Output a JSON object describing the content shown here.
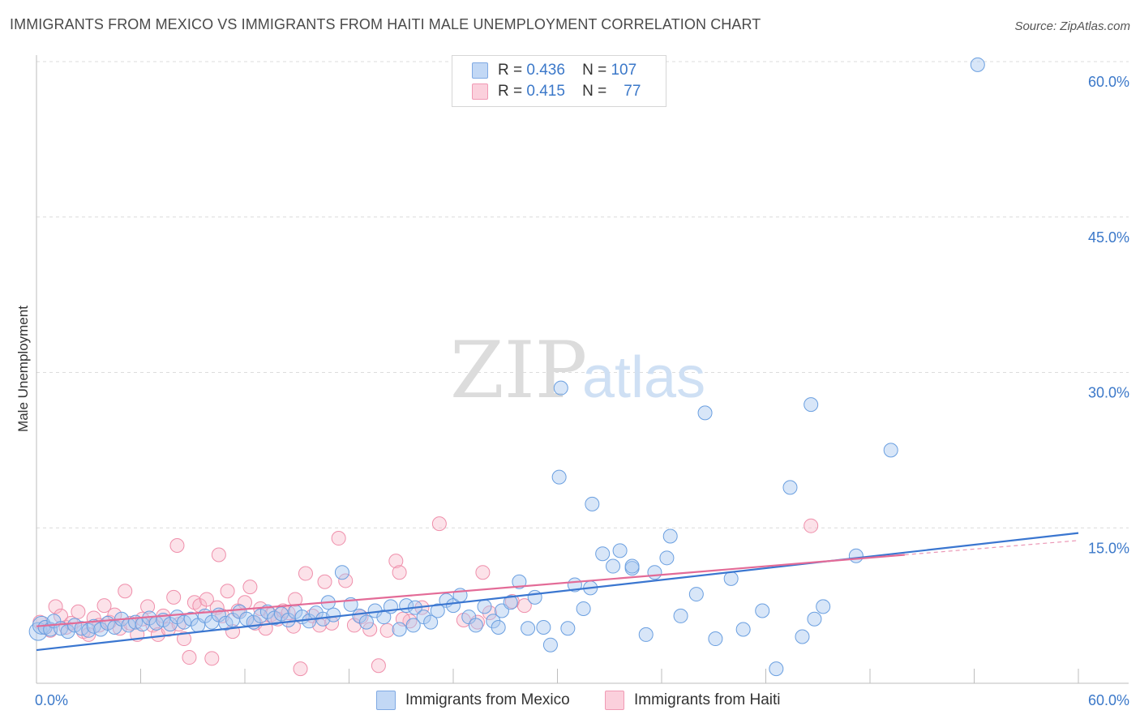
{
  "header": {
    "title": "IMMIGRANTS FROM MEXICO VS IMMIGRANTS FROM HAITI MALE UNEMPLOYMENT CORRELATION CHART",
    "source": "Source: ZipAtlas.com"
  },
  "legend": {
    "rows": [
      {
        "r_label": "R =",
        "r_value": "0.436",
        "n_label": "N =",
        "n_value": "107",
        "color": "#a9c8f0"
      },
      {
        "r_label": "R =",
        "r_value": "0.415",
        "n_label": "N =",
        "n_value": "77",
        "color": "#f7b7c8"
      }
    ]
  },
  "watermark": {
    "zip": "ZIP",
    "atlas": "atlas"
  },
  "bottom_legend": {
    "mexico_label": "Immigrants from Mexico",
    "haiti_label": "Immigrants from Haiti"
  },
  "chart_data": {
    "type": "scatter",
    "ylabel": "Male Unemployment",
    "xlim": [
      0,
      60
    ],
    "ylim": [
      0,
      60
    ],
    "x_tick_labels": [
      "0.0%",
      "60.0%"
    ],
    "y_tick_labels": [
      "15.0%",
      "30.0%",
      "45.0%",
      "60.0%"
    ],
    "y_ticks": [
      15,
      30,
      45,
      60
    ],
    "colors": {
      "mexico": "#6a9fe0",
      "haiti": "#ef8fab",
      "mexico_line": "#3a76d0",
      "haiti_line": "#e36b97",
      "axis_label": "#3b78c9"
    },
    "series": [
      {
        "name": "Immigrants from Mexico",
        "trend": {
          "x": [
            0,
            60
          ],
          "y": [
            3.2,
            14.5
          ]
        },
        "points": [
          [
            0.1,
            5.0
          ],
          [
            0.3,
            5.6
          ],
          [
            0.5,
            5.4
          ],
          [
            0.8,
            5.2
          ],
          [
            1.0,
            6.0
          ],
          [
            1.4,
            5.3
          ],
          [
            1.8,
            5.0
          ],
          [
            2.2,
            5.6
          ],
          [
            2.6,
            5.3
          ],
          [
            3.0,
            5.1
          ],
          [
            3.3,
            5.5
          ],
          [
            3.7,
            5.2
          ],
          [
            4.1,
            5.8
          ],
          [
            4.5,
            5.4
          ],
          [
            4.9,
            6.2
          ],
          [
            5.3,
            5.6
          ],
          [
            5.7,
            5.9
          ],
          [
            6.1,
            5.7
          ],
          [
            6.5,
            6.3
          ],
          [
            6.9,
            5.8
          ],
          [
            7.3,
            6.1
          ],
          [
            7.7,
            5.7
          ],
          [
            8.1,
            6.4
          ],
          [
            8.5,
            5.9
          ],
          [
            8.9,
            6.2
          ],
          [
            9.3,
            5.6
          ],
          [
            9.7,
            6.5
          ],
          [
            10.1,
            5.9
          ],
          [
            10.5,
            6.6
          ],
          [
            10.9,
            5.8
          ],
          [
            11.3,
            6.1
          ],
          [
            11.7,
            6.9
          ],
          [
            12.1,
            6.2
          ],
          [
            12.5,
            5.9
          ],
          [
            12.9,
            6.5
          ],
          [
            13.3,
            6.9
          ],
          [
            13.7,
            6.3
          ],
          [
            14.1,
            6.7
          ],
          [
            14.5,
            6.1
          ],
          [
            14.9,
            6.9
          ],
          [
            15.3,
            6.4
          ],
          [
            15.7,
            6.0
          ],
          [
            16.1,
            6.8
          ],
          [
            16.5,
            6.2
          ],
          [
            16.8,
            7.8
          ],
          [
            17.1,
            6.6
          ],
          [
            17.6,
            10.7
          ],
          [
            18.1,
            7.6
          ],
          [
            18.6,
            6.5
          ],
          [
            19.0,
            5.9
          ],
          [
            19.5,
            7.0
          ],
          [
            20.0,
            6.4
          ],
          [
            20.4,
            7.4
          ],
          [
            20.9,
            5.2
          ],
          [
            21.3,
            7.5
          ],
          [
            21.8,
            7.3
          ],
          [
            22.3,
            6.4
          ],
          [
            22.7,
            5.9
          ],
          [
            23.1,
            7.0
          ],
          [
            23.6,
            8.0
          ],
          [
            24.0,
            7.5
          ],
          [
            24.4,
            8.5
          ],
          [
            24.9,
            6.4
          ],
          [
            25.3,
            5.6
          ],
          [
            25.8,
            7.4
          ],
          [
            26.3,
            6.0
          ],
          [
            26.8,
            7.0
          ],
          [
            27.3,
            7.8
          ],
          [
            27.8,
            9.8
          ],
          [
            28.3,
            5.3
          ],
          [
            28.7,
            8.3
          ],
          [
            29.2,
            5.4
          ],
          [
            29.6,
            3.7
          ],
          [
            30.1,
            19.9
          ],
          [
            30.6,
            5.3
          ],
          [
            31.0,
            9.5
          ],
          [
            31.5,
            7.2
          ],
          [
            32.0,
            17.3
          ],
          [
            32.6,
            12.5
          ],
          [
            33.2,
            11.3
          ],
          [
            33.6,
            12.8
          ],
          [
            34.3,
            11.1
          ],
          [
            35.1,
            4.7
          ],
          [
            35.6,
            10.7
          ],
          [
            36.3,
            12.1
          ],
          [
            37.1,
            6.5
          ],
          [
            38.0,
            8.6
          ],
          [
            39.1,
            4.3
          ],
          [
            40.0,
            10.1
          ],
          [
            40.7,
            5.2
          ],
          [
            41.8,
            7.0
          ],
          [
            42.6,
            1.4
          ],
          [
            43.4,
            18.9
          ],
          [
            44.1,
            4.5
          ],
          [
            44.8,
            6.2
          ],
          [
            45.3,
            7.4
          ],
          [
            47.2,
            12.3
          ],
          [
            38.5,
            26.1
          ],
          [
            44.6,
            26.9
          ],
          [
            49.2,
            22.5
          ],
          [
            54.2,
            59.7
          ],
          [
            36.5,
            14.2
          ],
          [
            34.3,
            11.3
          ],
          [
            31.9,
            9.2
          ],
          [
            30.2,
            28.5
          ],
          [
            26.6,
            5.4
          ],
          [
            21.7,
            5.6
          ]
        ]
      },
      {
        "name": "Immigrants from Haiti",
        "trend": {
          "x": [
            0,
            50
          ],
          "y": [
            5.5,
            12.4
          ]
        },
        "points": [
          [
            0.2,
            5.9
          ],
          [
            0.5,
            5.4
          ],
          [
            0.8,
            5.1
          ],
          [
            1.1,
            7.4
          ],
          [
            1.4,
            6.5
          ],
          [
            1.7,
            5.4
          ],
          [
            2.0,
            5.8
          ],
          [
            2.4,
            6.9
          ],
          [
            2.7,
            5.0
          ],
          [
            3.0,
            4.7
          ],
          [
            3.3,
            6.3
          ],
          [
            3.6,
            5.6
          ],
          [
            3.9,
            7.5
          ],
          [
            4.2,
            5.9
          ],
          [
            4.5,
            6.6
          ],
          [
            4.8,
            5.3
          ],
          [
            5.1,
            8.9
          ],
          [
            5.4,
            5.8
          ],
          [
            5.8,
            4.7
          ],
          [
            6.1,
            6.2
          ],
          [
            6.4,
            7.4
          ],
          [
            6.7,
            5.6
          ],
          [
            7.0,
            4.7
          ],
          [
            7.3,
            6.5
          ],
          [
            7.6,
            5.2
          ],
          [
            7.9,
            8.3
          ],
          [
            8.2,
            5.7
          ],
          [
            8.5,
            4.3
          ],
          [
            8.8,
            2.5
          ],
          [
            9.1,
            7.8
          ],
          [
            9.4,
            7.5
          ],
          [
            9.8,
            8.1
          ],
          [
            10.1,
            2.4
          ],
          [
            10.4,
            7.3
          ],
          [
            10.7,
            6.5
          ],
          [
            11.0,
            8.9
          ],
          [
            11.3,
            5.0
          ],
          [
            11.6,
            7.0
          ],
          [
            12.0,
            7.8
          ],
          [
            12.3,
            9.3
          ],
          [
            12.6,
            5.8
          ],
          [
            12.9,
            7.2
          ],
          [
            13.2,
            5.3
          ],
          [
            13.5,
            6.6
          ],
          [
            13.9,
            6.2
          ],
          [
            14.2,
            7.0
          ],
          [
            14.5,
            6.8
          ],
          [
            14.9,
            8.1
          ],
          [
            15.2,
            1.4
          ],
          [
            15.5,
            10.6
          ],
          [
            15.9,
            6.5
          ],
          [
            16.3,
            5.6
          ],
          [
            16.6,
            9.8
          ],
          [
            17.0,
            5.8
          ],
          [
            17.4,
            14.0
          ],
          [
            17.8,
            9.9
          ],
          [
            18.3,
            5.6
          ],
          [
            18.7,
            6.4
          ],
          [
            19.2,
            5.2
          ],
          [
            19.7,
            1.7
          ],
          [
            20.2,
            5.1
          ],
          [
            20.7,
            11.8
          ],
          [
            20.9,
            10.7
          ],
          [
            21.5,
            6.0
          ],
          [
            22.2,
            7.3
          ],
          [
            23.2,
            15.4
          ],
          [
            24.6,
            6.1
          ],
          [
            25.7,
            10.7
          ],
          [
            26.1,
            6.8
          ],
          [
            27.4,
            7.9
          ],
          [
            28.1,
            7.5
          ],
          [
            8.1,
            13.3
          ],
          [
            10.5,
            12.4
          ],
          [
            25.4,
            5.9
          ],
          [
            21.1,
            6.2
          ],
          [
            44.6,
            15.2
          ],
          [
            14.8,
            5.5
          ]
        ]
      }
    ]
  }
}
